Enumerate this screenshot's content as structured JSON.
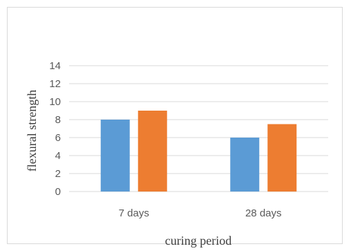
{
  "chart_data": {
    "type": "bar",
    "categories": [
      "7 days",
      "28 days"
    ],
    "series": [
      {
        "values": [
          8,
          6
        ],
        "color": "#5b9bd5"
      },
      {
        "values": [
          9,
          7.5
        ],
        "color": "#ed7d31"
      }
    ],
    "xlabel": "curing period",
    "ylabel": "flexural strength",
    "ylim": [
      0,
      14
    ],
    "yticks": [
      "0",
      "2",
      "4",
      "6",
      "8",
      "10",
      "12",
      "14"
    ],
    "grid": true,
    "gridColor": "#d9d9d9"
  }
}
